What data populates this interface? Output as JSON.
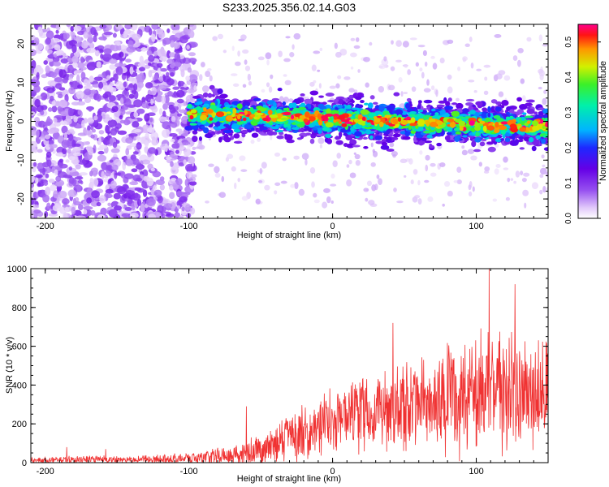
{
  "title": "S233.2025.356.02.14.G03",
  "chart_data": [
    {
      "type": "heatmap",
      "xlabel": "Height of straight line (km)",
      "ylabel": "Frequency (Hz)",
      "xlim": [
        -210,
        150
      ],
      "ylim": [
        -25,
        25
      ],
      "xticks": [
        -200,
        -100,
        0,
        100
      ],
      "xtick_labels": [
        "-200",
        "-100",
        "0",
        "100"
      ],
      "yticks": [
        -20,
        -10,
        0,
        10,
        20
      ],
      "ytick_labels": [
        "-20",
        "-10",
        "0",
        "10",
        "20"
      ],
      "colorbar": {
        "label": "Normalized spectral amplitude",
        "range": [
          0,
          0.55
        ],
        "ticks": [
          0,
          0.1,
          0.2,
          0.3,
          0.4,
          0.5
        ],
        "tick_labels": [
          "0.0",
          "0.1",
          "0.2",
          "0.3",
          "0.4",
          "0.5"
        ]
      },
      "features": [
        {
          "region": "noise",
          "x_range": [
            -210,
            -100
          ],
          "freq_range": [
            -25,
            25
          ],
          "amplitude_range": [
            0.02,
            0.12
          ]
        },
        {
          "region": "signal_band",
          "x_range": [
            -100,
            150
          ],
          "center_freq_start": 2,
          "center_freq_end": -1.5,
          "half_width_hz": 8,
          "amplitude_range": [
            0.05,
            0.55
          ]
        }
      ]
    },
    {
      "type": "line",
      "xlabel": "Height of straight line (km)",
      "ylabel": "SNR (10 * v/v)",
      "xlim": [
        -210,
        150
      ],
      "ylim": [
        0,
        1000
      ],
      "xticks": [
        -200,
        -100,
        0,
        100
      ],
      "xtick_labels": [
        "-200",
        "-100",
        "0",
        "100"
      ],
      "yticks": [
        0,
        200,
        400,
        600,
        800,
        1000
      ],
      "ytick_labels": [
        "0",
        "200",
        "400",
        "600",
        "800",
        "1000"
      ],
      "color": "#f03232",
      "series": [
        {
          "name": "SNR",
          "envelope": {
            "x": [
              -210,
              -180,
              -150,
              -120,
              -100,
              -80,
              -60,
              -40,
              -20,
              0,
              20,
              40,
              60,
              80,
              100,
              120,
              150
            ],
            "baseline": [
              12,
              18,
              15,
              18,
              20,
              35,
              50,
              80,
              150,
              220,
              260,
              300,
              300,
              330,
              350,
              380,
              380
            ],
            "spread": [
              15,
              25,
              20,
              25,
              35,
              55,
              75,
              110,
              170,
              210,
              240,
              260,
              280,
              320,
              380,
              360,
              340
            ]
          },
          "peaks": [
            {
              "x": -185,
              "y": 80
            },
            {
              "x": -158,
              "y": 70
            },
            {
              "x": -60,
              "y": 290
            },
            {
              "x": 42,
              "y": 720
            },
            {
              "x": 109,
              "y": 1000
            },
            {
              "x": 127,
              "y": 920
            }
          ]
        }
      ]
    }
  ]
}
